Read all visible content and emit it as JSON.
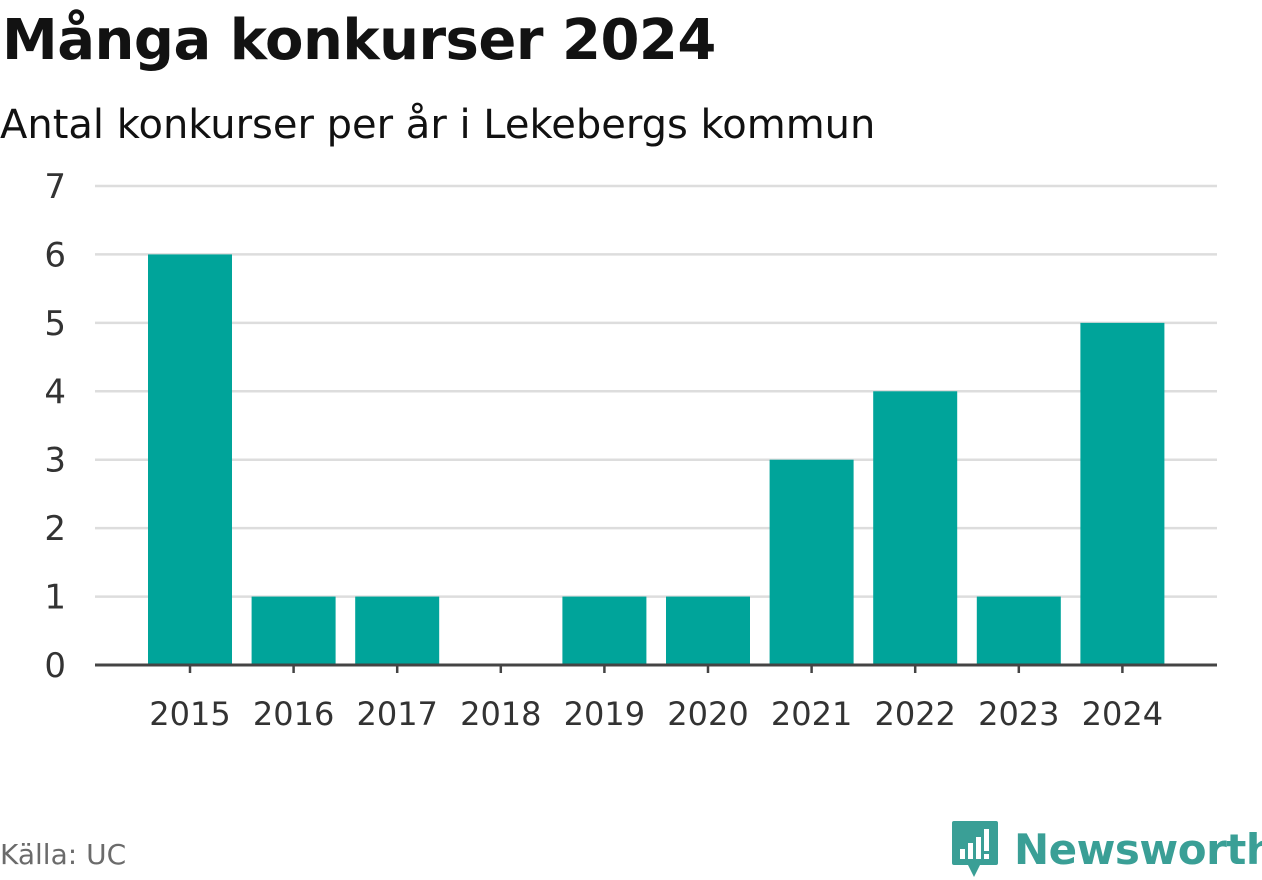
{
  "header": {
    "title": "Många konkurser 2024",
    "subtitle": "Antal konkurser per år i Lekebergs kommun"
  },
  "footer": {
    "source": "Källa: UC",
    "brand": "Newsworthy"
  },
  "colors": {
    "bar": "#00a49a",
    "grid": "#dddddd",
    "axis": "#444444",
    "brand": "#3a9f96"
  },
  "chart_data": {
    "type": "bar",
    "categories": [
      "2015",
      "2016",
      "2017",
      "2018",
      "2019",
      "2020",
      "2021",
      "2022",
      "2023",
      "2024"
    ],
    "values": [
      6,
      1,
      1,
      0,
      1,
      1,
      3,
      4,
      1,
      5
    ],
    "ylim": [
      0,
      7
    ],
    "yticks": [
      0,
      1,
      2,
      3,
      4,
      5,
      6,
      7
    ],
    "grid": true,
    "legend": "none"
  }
}
